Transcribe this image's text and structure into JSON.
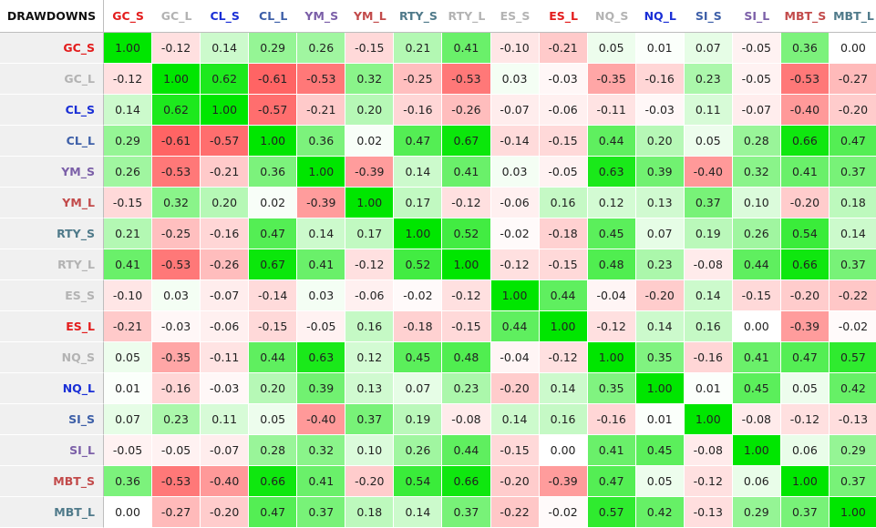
{
  "chart_data": {
    "type": "heatmap",
    "title": "DRAWDOWNS",
    "labels": [
      "GC_S",
      "GC_L",
      "CL_S",
      "CL_L",
      "YM_S",
      "YM_L",
      "RTY_S",
      "RTY_L",
      "ES_S",
      "ES_L",
      "NQ_S",
      "NQ_L",
      "SI_S",
      "SI_L",
      "MBT_S",
      "MBT_L"
    ],
    "label_colors": [
      "#e31c1c",
      "#b3b3b3",
      "#1a2fd6",
      "#3d5fa8",
      "#7b5fa8",
      "#c24a4a",
      "#4f7a8a",
      "#b3b3b3",
      "#b3b3b3",
      "#e31c1c",
      "#b3b3b3",
      "#1a2fd6",
      "#3d5fa8",
      "#7b5fa8",
      "#c24a4a",
      "#4f7a8a"
    ],
    "color_scale": {
      "negative": "#ff4d4d",
      "zero": "#ffffff",
      "positive": "#00e600",
      "diagonal": "#00e600"
    },
    "matrix": [
      [
        1.0,
        -0.12,
        0.14,
        0.29,
        0.26,
        -0.15,
        0.21,
        0.41,
        -0.1,
        -0.21,
        0.05,
        0.01,
        0.07,
        -0.05,
        0.36,
        0.0
      ],
      [
        -0.12,
        1.0,
        0.62,
        -0.61,
        -0.53,
        0.32,
        -0.25,
        -0.53,
        0.03,
        -0.03,
        -0.35,
        -0.16,
        0.23,
        -0.05,
        -0.53,
        -0.27
      ],
      [
        0.14,
        0.62,
        1.0,
        -0.57,
        -0.21,
        0.2,
        -0.16,
        -0.26,
        -0.07,
        -0.06,
        -0.11,
        -0.03,
        0.11,
        -0.07,
        -0.4,
        -0.2
      ],
      [
        0.29,
        -0.61,
        -0.57,
        1.0,
        0.36,
        0.02,
        0.47,
        0.67,
        -0.14,
        -0.15,
        0.44,
        0.2,
        0.05,
        0.28,
        0.66,
        0.47
      ],
      [
        0.26,
        -0.53,
        -0.21,
        0.36,
        1.0,
        -0.39,
        0.14,
        0.41,
        0.03,
        -0.05,
        0.63,
        0.39,
        -0.4,
        0.32,
        0.41,
        0.37
      ],
      [
        -0.15,
        0.32,
        0.2,
        0.02,
        -0.39,
        1.0,
        0.17,
        -0.12,
        -0.06,
        0.16,
        0.12,
        0.13,
        0.37,
        0.1,
        -0.2,
        0.18
      ],
      [
        0.21,
        -0.25,
        -0.16,
        0.47,
        0.14,
        0.17,
        1.0,
        0.52,
        -0.02,
        -0.18,
        0.45,
        0.07,
        0.19,
        0.26,
        0.54,
        0.14
      ],
      [
        0.41,
        -0.53,
        -0.26,
        0.67,
        0.41,
        -0.12,
        0.52,
        1.0,
        -0.12,
        -0.15,
        0.48,
        0.23,
        -0.08,
        0.44,
        0.66,
        0.37
      ],
      [
        -0.1,
        0.03,
        -0.07,
        -0.14,
        0.03,
        -0.06,
        -0.02,
        -0.12,
        1.0,
        0.44,
        -0.04,
        -0.2,
        0.14,
        -0.15,
        -0.2,
        -0.22
      ],
      [
        -0.21,
        -0.03,
        -0.06,
        -0.15,
        -0.05,
        0.16,
        -0.18,
        -0.15,
        0.44,
        1.0,
        -0.12,
        0.14,
        0.16,
        0.0,
        -0.39,
        -0.02
      ],
      [
        0.05,
        -0.35,
        -0.11,
        0.44,
        0.63,
        0.12,
        0.45,
        0.48,
        -0.04,
        -0.12,
        1.0,
        0.35,
        -0.16,
        0.41,
        0.47,
        0.57
      ],
      [
        0.01,
        -0.16,
        -0.03,
        0.2,
        0.39,
        0.13,
        0.07,
        0.23,
        -0.2,
        0.14,
        0.35,
        1.0,
        0.01,
        0.45,
        0.05,
        0.42
      ],
      [
        0.07,
        0.23,
        0.11,
        0.05,
        -0.4,
        0.37,
        0.19,
        -0.08,
        0.14,
        0.16,
        -0.16,
        0.01,
        1.0,
        -0.08,
        -0.12,
        -0.13
      ],
      [
        -0.05,
        -0.05,
        -0.07,
        0.28,
        0.32,
        0.1,
        0.26,
        0.44,
        -0.15,
        0.0,
        0.41,
        0.45,
        -0.08,
        1.0,
        0.06,
        0.29
      ],
      [
        0.36,
        -0.53,
        -0.4,
        0.66,
        0.41,
        -0.2,
        0.54,
        0.66,
        -0.2,
        -0.39,
        0.47,
        0.05,
        -0.12,
        0.06,
        1.0,
        0.37
      ],
      [
        0.0,
        -0.27,
        -0.2,
        0.47,
        0.37,
        0.18,
        0.14,
        0.37,
        -0.22,
        -0.02,
        0.57,
        0.42,
        -0.13,
        0.29,
        0.37,
        1.0
      ]
    ]
  }
}
